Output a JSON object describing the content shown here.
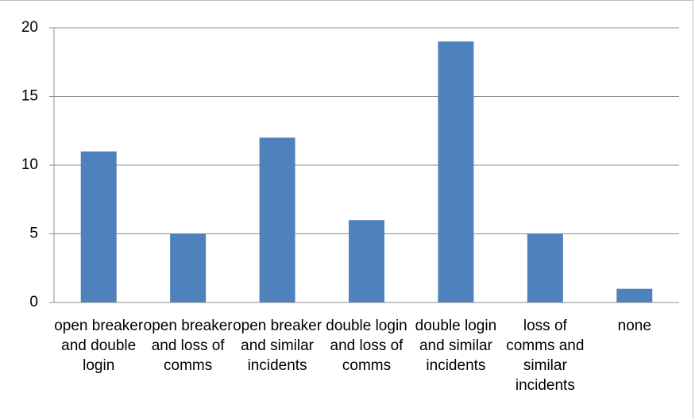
{
  "chart_data": {
    "type": "bar",
    "categories": [
      "open breaker and double login",
      "open breaker and loss of comms",
      "open breaker and similar incidents",
      "double login and loss of comms",
      "double login and similar incidents",
      "loss of comms and similar incidents",
      "none"
    ],
    "values": [
      11,
      5,
      12,
      6,
      19,
      5,
      1
    ],
    "color": "#4f81bd",
    "ylim": [
      0,
      20
    ],
    "yticks": [
      0,
      5,
      10,
      15,
      20
    ],
    "grid": true
  }
}
